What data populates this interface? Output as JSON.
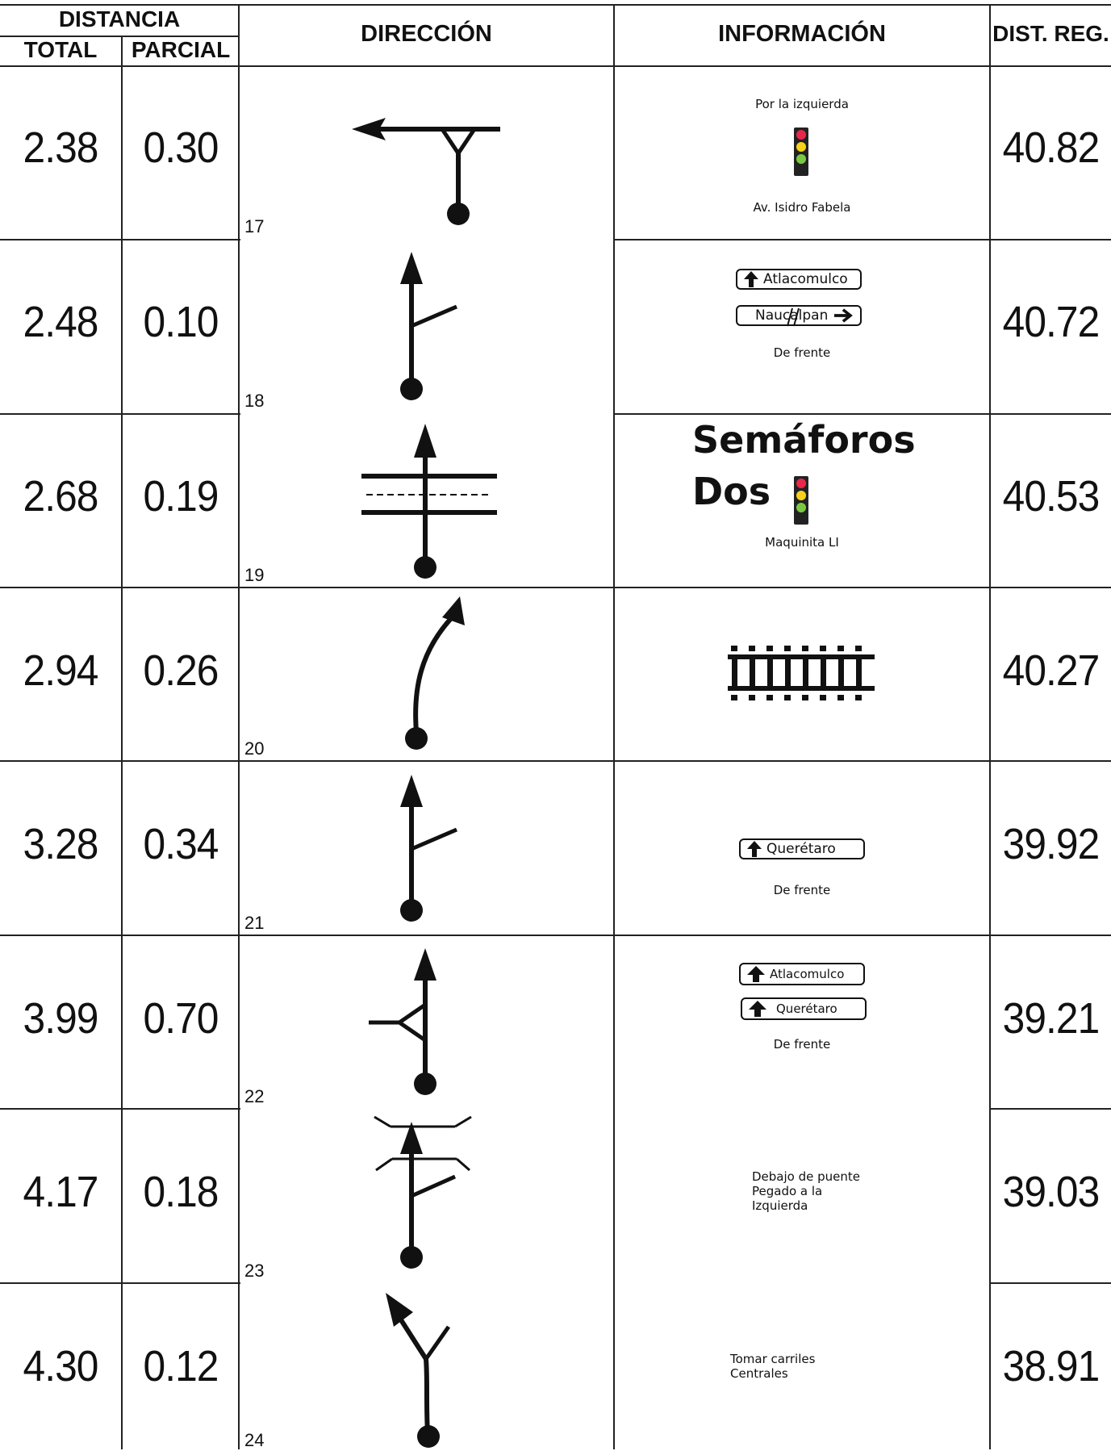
{
  "header": {
    "distancia": "DISTANCIA",
    "total": "TOTAL",
    "parcial": "PARCIAL",
    "direccion": "DIRECCIÓN",
    "informacion": "INFORMACIÓN",
    "dist_reg": "DIST. REG."
  },
  "rows": [
    {
      "total": "2.38",
      "parcial": "0.30",
      "num": "17",
      "dist_reg": "40.82",
      "info": {
        "top": "Por la izquierda",
        "bottom": "Av. Isidro Fabela",
        "icon": "traffic-light-icon"
      }
    },
    {
      "total": "2.48",
      "parcial": "0.10",
      "num": "18",
      "dist_reg": "40.72",
      "info": {
        "sign1": "Atlacomulco",
        "sign2": "Naucalpan",
        "bottom": "De frente",
        "sign2_note": "crossed-out"
      }
    },
    {
      "total": "2.68",
      "parcial": "0.19",
      "num": "19",
      "dist_reg": "40.53",
      "info": {
        "big1": "Semáforos",
        "big2": "Dos",
        "bottom": "Maquinita LI",
        "icon": "traffic-light-icon"
      }
    },
    {
      "total": "2.94",
      "parcial": "0.26",
      "num": "20",
      "dist_reg": "40.27",
      "info": {
        "icon": "railroad-crossing-icon"
      }
    },
    {
      "total": "3.28",
      "parcial": "0.34",
      "num": "21",
      "dist_reg": "39.92",
      "info": {
        "sign1": "Querétaro",
        "bottom": "De frente"
      }
    },
    {
      "total": "3.99",
      "parcial": "0.70",
      "num": "22",
      "dist_reg": "39.21",
      "info": {
        "sign1": "Atlacomulco",
        "sign2": "Querétaro",
        "bottom": "De frente"
      }
    },
    {
      "total": "4.17",
      "parcial": "0.18",
      "num": "23",
      "dist_reg": "39.03",
      "info": {
        "line1": "Debajo de puente",
        "line2": "Pegado a la",
        "line3": "Izquierda"
      }
    },
    {
      "total": "4.30",
      "parcial": "0.12",
      "num": "24",
      "dist_reg": "38.91",
      "info": {
        "line1": "Tomar carriles",
        "line2": "Centrales"
      }
    }
  ]
}
